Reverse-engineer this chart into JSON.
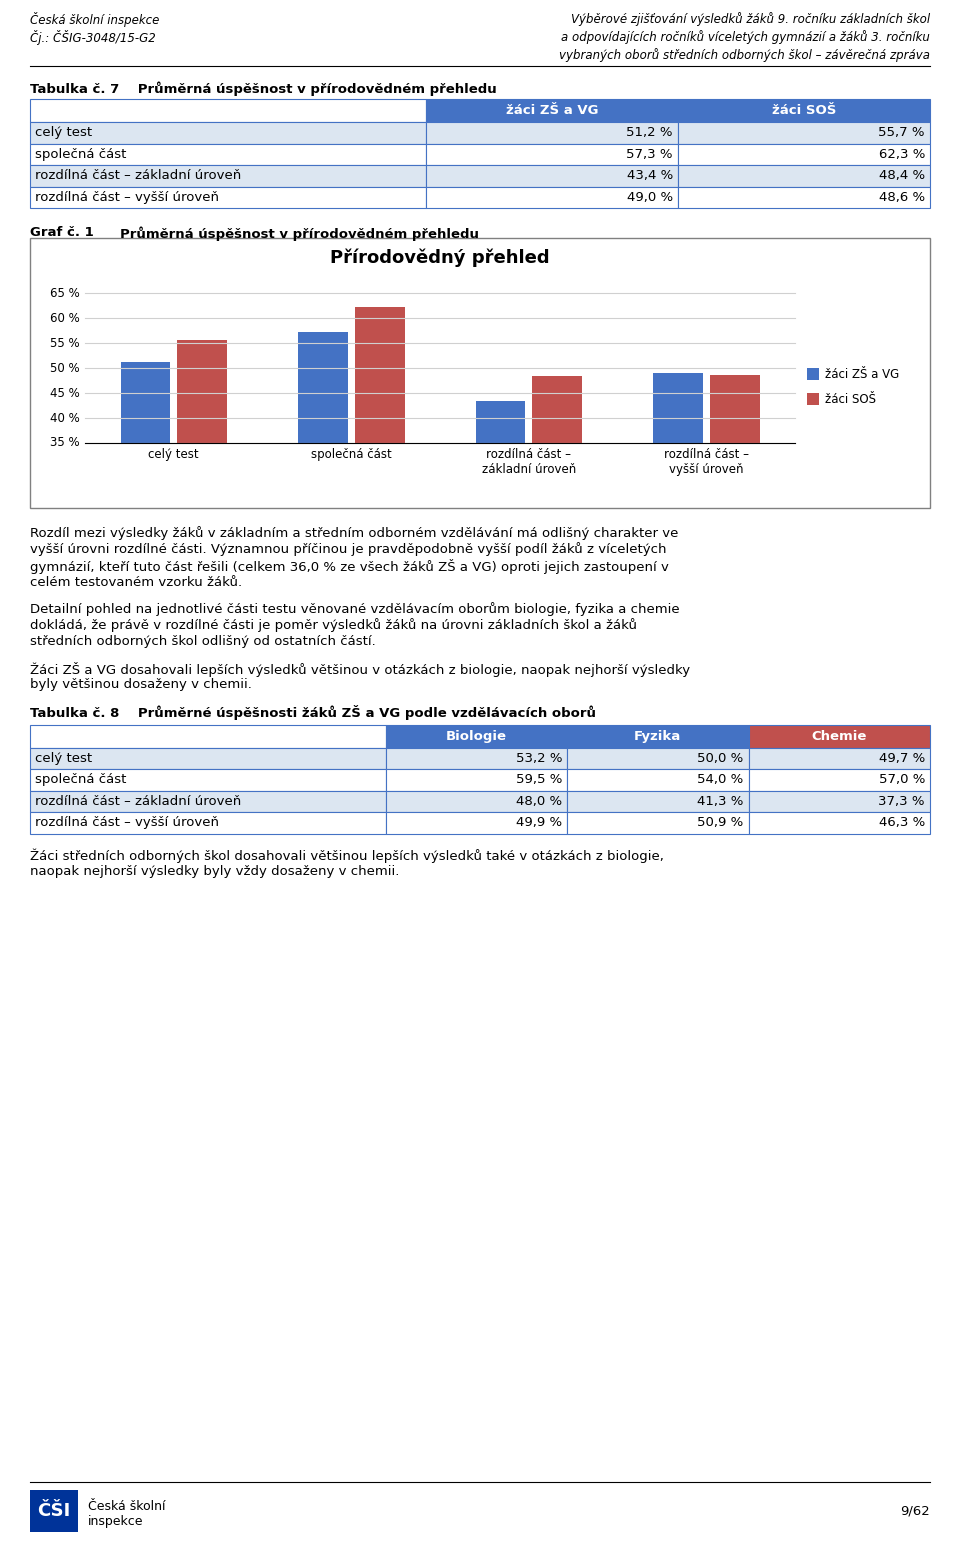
{
  "page_header_left_line1": "Česká školní inspekce",
  "page_header_left_line2": "Čj.: ČŠIG-3048/15-G2",
  "page_header_right_line1": "Výběrové zjišťování výsledků žáků 9. ročníku základních škol",
  "page_header_right_line2": "a odpovídajících ročníků víceletých gymnázií a žáků 3. ročníku",
  "page_header_right_line3": "vybraných oborů středních odborných škol – závěrečná zpráva",
  "table1_title": "Tabulka č. 7    Průměrná úspěšnost v přírodovědném přehledu",
  "table1_col_headers": [
    "žáci ZŠ a VG",
    "žáci SOŠ"
  ],
  "table1_rows": [
    [
      "celý test",
      "51,2 %",
      "55,7 %"
    ],
    [
      "společná část",
      "57,3 %",
      "62,3 %"
    ],
    [
      "rozdílná část – základní úroveň",
      "43,4 %",
      "48,4 %"
    ],
    [
      "rozdílná část – vyšší úroveň",
      "49,0 %",
      "48,6 %"
    ]
  ],
  "table1_header_bg": "#4472C4",
  "table1_row_bg_odd": "#dce6f1",
  "table1_row_bg_even": "#ffffff",
  "table1_border_color": "#4472C4",
  "chart_title_label": "Graf č. 1",
  "chart_title_text": "Průměrná úspěšnost v přírodovědném přehledu",
  "chart_inner_title": "Přírodovědný přehled",
  "chart_categories": [
    "celý test",
    "společná část",
    "rozdílná část –\nzákladní úroveň",
    "rozdílná část –\nvyšší úroveň"
  ],
  "chart_zs_values": [
    51.2,
    57.3,
    43.4,
    49.0
  ],
  "chart_sos_values": [
    55.7,
    62.3,
    48.4,
    48.6
  ],
  "chart_zs_color": "#4472C4",
  "chart_sos_color": "#C0504D",
  "chart_legend": [
    "žáci ZŠ a VG",
    "žáci SOŠ"
  ],
  "chart_ylim": [
    35,
    68
  ],
  "chart_yticks": [
    35,
    40,
    45,
    50,
    55,
    60,
    65
  ],
  "chart_border_color": "#808080",
  "chart_grid_color": "#d0d0d0",
  "para1": "Rozdíl mezi výsledky žáků v základním a středním odborném vzdělávání má odlišný charakter ve vyšší úrovni rozdílné části. Významnou příčinou je pravděpodobně vyšší podíl žáků z víceletých gymnázií, kteří tuto část řešili (celkem 36,0 % ze všech žáků ZŠ a VG) oproti jejich zastoupení v celém testovaném vzorku žáků.",
  "para2": "Detailní pohled na jednotlivé části testu věnované vzdělávacím oborům biologie, fyzika a chemie dokládá, že právě v rozdílné části je poměr výsledků žáků na úrovni základních škol a žáků středních odborných škol odlišný od ostatních částí.",
  "para3": "Žáci ZŠ a VG dosahovali lepších výsledků většinou v otázkách z biologie, naopak nejhorší výsledky byly většinou dosaženy v chemii.",
  "table2_title": "Tabulka č. 8    Průměrné úspěšnosti žáků ZŠ a VG podle vzdělávacích oborů",
  "table2_col_headers": [
    "Biologie",
    "Fyzika",
    "Chemie"
  ],
  "table2_rows": [
    [
      "celý test",
      "53,2 %",
      "50,0 %",
      "49,7 %"
    ],
    [
      "společná část",
      "59,5 %",
      "54,0 %",
      "57,0 %"
    ],
    [
      "rozdílná část – základní úroveň",
      "48,0 %",
      "41,3 %",
      "37,3 %"
    ],
    [
      "rozdílná část – vyšší úroveň",
      "49,9 %",
      "50,9 %",
      "46,3 %"
    ]
  ],
  "table2_header_bg_bio": "#4472C4",
  "table2_header_bg_fyz": "#4472C4",
  "table2_header_bg_che": "#C0504D",
  "table2_row_bg_odd": "#dce6f1",
  "table2_row_bg_even": "#ffffff",
  "para4": "Žáci středních odborných škol dosahovali většinou lepších výsledků také v otázkách z biologie, naopak nejhorší výsledky byly vždy dosaženy v chemii.",
  "footer_page": "9/62",
  "footer_org_line1": "Česká školní",
  "footer_org_line2": "inspekce"
}
